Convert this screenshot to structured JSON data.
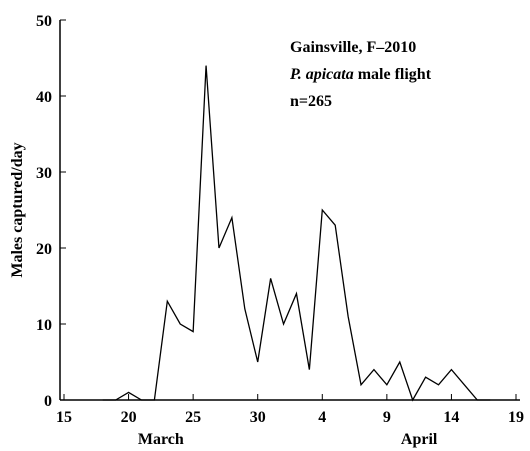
{
  "chart_data": {
    "type": "line",
    "ylabel": "Males captured/day",
    "annotations": [
      "Gainsville, F–2010",
      "P. apicata",
      "male flight",
      "n=265"
    ],
    "month_labels": [
      {
        "value": 22.5,
        "label": "March"
      },
      {
        "value": 42.5,
        "label": "April"
      }
    ],
    "x": [
      18,
      19,
      20,
      21,
      22,
      23,
      24,
      25,
      26,
      27,
      28,
      29,
      30,
      31,
      32,
      33,
      34,
      35,
      36,
      37,
      38,
      39,
      40,
      41,
      42,
      43,
      44,
      45,
      46,
      47,
      48
    ],
    "series": [
      {
        "color": "#000000",
        "values": [
          0,
          0,
          1,
          0,
          0,
          13,
          10,
          9,
          44,
          20,
          24,
          12,
          5,
          16,
          10,
          14,
          4,
          25,
          23,
          11,
          2,
          4,
          2,
          5,
          0,
          3,
          2,
          4,
          2,
          0,
          0
        ]
      }
    ],
    "xlim": [
      15,
      50
    ],
    "xticks": [
      15,
      20,
      25,
      30,
      {
        "value": 35,
        "label": "4"
      },
      {
        "value": 40,
        "label": "9"
      },
      {
        "value": 45,
        "label": "14"
      },
      {
        "value": 50,
        "label": "19"
      }
    ],
    "ylim": [
      0,
      50
    ],
    "yticks": [
      0,
      10,
      20,
      30,
      40,
      50
    ]
  }
}
